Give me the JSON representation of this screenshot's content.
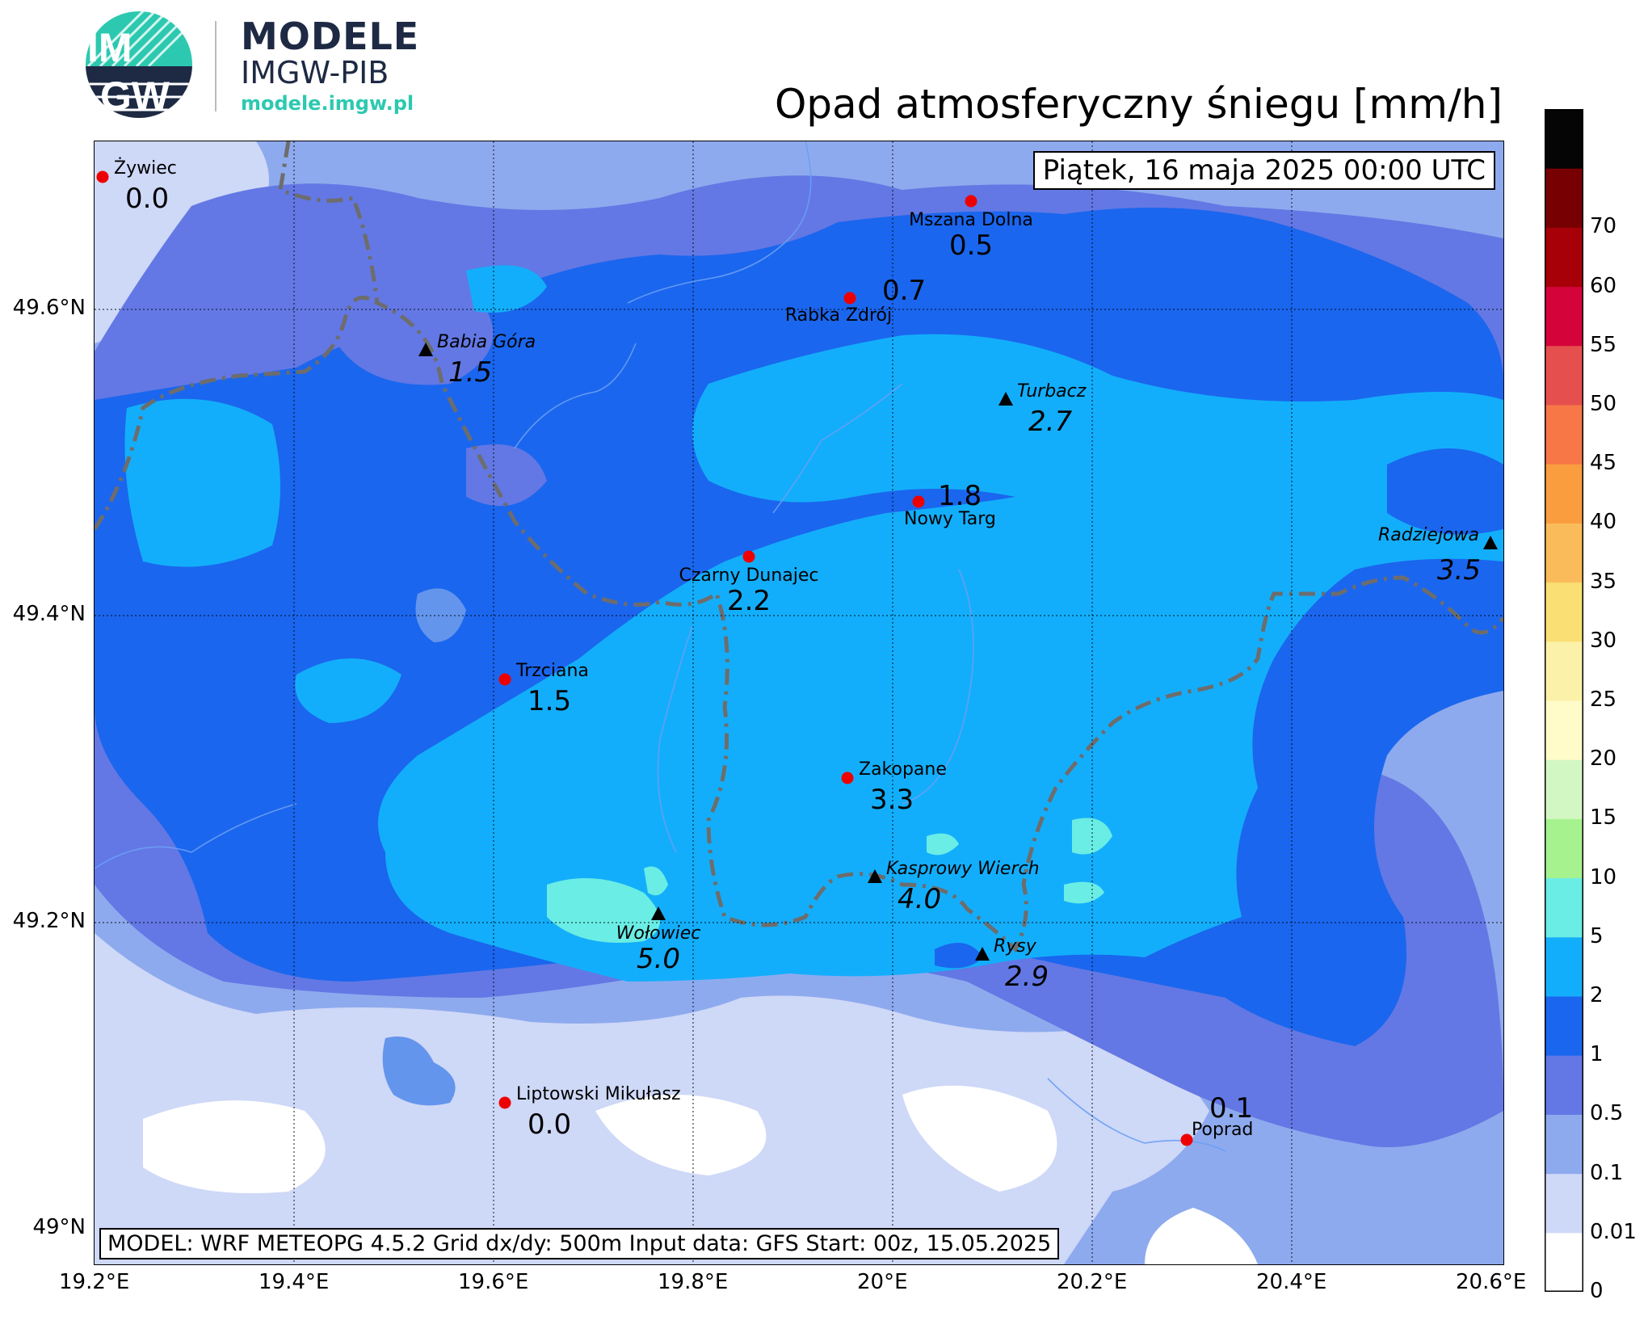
{
  "logo": {
    "badge_top": "IM",
    "badge_bottom": "GW",
    "line1": "MODELE",
    "line2": "IMGW-PIB",
    "line3": "modele.imgw.pl"
  },
  "title": "Opad atmosferyczny śniegu [mm/h]",
  "date_label": "Piątek, 16 maja 2025 00:00 UTC",
  "model_label": "MODEL: WRF METEOPG 4.5.2 Grid dx/dy: 500m Input data: GFS Start: 00z, 15.05.2025",
  "axes": {
    "x_ticks": [
      "19.2°E",
      "19.4°E",
      "19.6°E",
      "19.8°E",
      "20°E",
      "20.2°E",
      "20.4°E",
      "20.6°E"
    ],
    "y_ticks": [
      "49.6°N",
      "49.4°N",
      "49.2°N",
      "49°N"
    ]
  },
  "colorbar": {
    "levels": [
      "0",
      "0.01",
      "0.1",
      "0.5",
      "1",
      "2",
      "5",
      "10",
      "15",
      "20",
      "25",
      "30",
      "35",
      "40",
      "45",
      "50",
      "55",
      "60",
      "70"
    ],
    "colors": [
      "#ffffff",
      "#ced8f7",
      "#8eaaee",
      "#6378e4",
      "#1b66ee",
      "#13aefb",
      "#6aede4",
      "#a6f28f",
      "#d3f7c3",
      "#fffcc9",
      "#fcf1a8",
      "#fadf74",
      "#fabb5b",
      "#f99d3e",
      "#f77747",
      "#e5504f",
      "#d4033a",
      "#a70008",
      "#770003",
      "#050505"
    ]
  },
  "stations": [
    {
      "name": "Żywiec",
      "value": "0.0",
      "kind": "city"
    },
    {
      "name": "Mszana Dolna",
      "value": "0.5",
      "kind": "city"
    },
    {
      "name": "Rabka Zdrój",
      "value": "0.7",
      "kind": "city"
    },
    {
      "name": "Babia Góra",
      "value": "1.5",
      "kind": "peak"
    },
    {
      "name": "Turbacz",
      "value": "2.7",
      "kind": "peak"
    },
    {
      "name": "Nowy Targ",
      "value": "1.8",
      "kind": "city"
    },
    {
      "name": "Czarny Dunajec",
      "value": "2.2",
      "kind": "city"
    },
    {
      "name": "Radziejowa",
      "value": "3.5",
      "kind": "peak"
    },
    {
      "name": "Trzciana",
      "value": "1.5",
      "kind": "city"
    },
    {
      "name": "Zakopane",
      "value": "3.3",
      "kind": "city"
    },
    {
      "name": "Kasprowy Wierch",
      "value": "4.0",
      "kind": "peak"
    },
    {
      "name": "Wołowiec",
      "value": "5.0",
      "kind": "peak"
    },
    {
      "name": "Rysy",
      "value": "2.9",
      "kind": "peak"
    },
    {
      "name": "Liptowski Mikułasz",
      "value": "0.0",
      "kind": "city"
    },
    {
      "name": "Poprad",
      "value": "0.1",
      "kind": "city"
    }
  ]
}
